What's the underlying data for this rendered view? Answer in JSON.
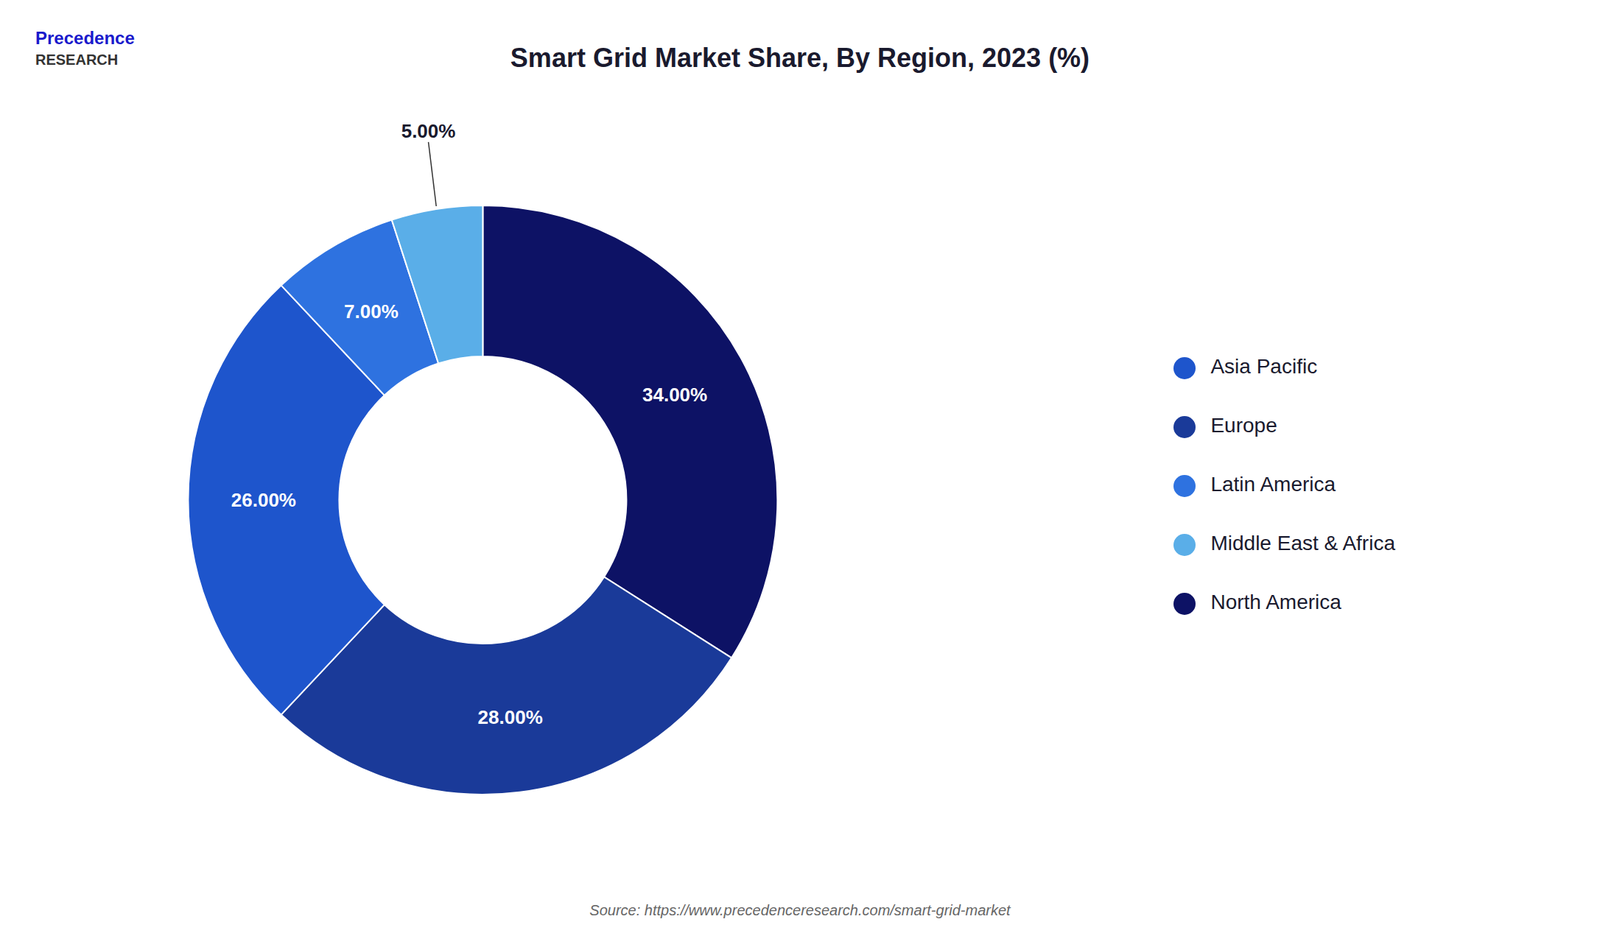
{
  "chart_data": {
    "type": "pie",
    "title": "Smart Grid Market  Share, By Region, 2023 (%)",
    "categories": [
      "North America",
      "Europe",
      "Asia Pacific",
      "Latin America",
      "Middle East & Africa"
    ],
    "values": [
      34,
      28,
      26,
      7,
      5
    ],
    "value_labels": [
      "34.00%",
      "28.00%",
      "26.00%",
      "7.00%",
      "5.00%"
    ],
    "colors": [
      "#0d1265",
      "#1a3a99",
      "#1e55cc",
      "#2e72e0",
      "#5aaee8"
    ],
    "data_labels": true,
    "legend": "right",
    "annotations": [
      "Precedence",
      "RESEARCH",
      "Source: https://www.precedenceresearch.com/smart-grid-market"
    ]
  }
}
